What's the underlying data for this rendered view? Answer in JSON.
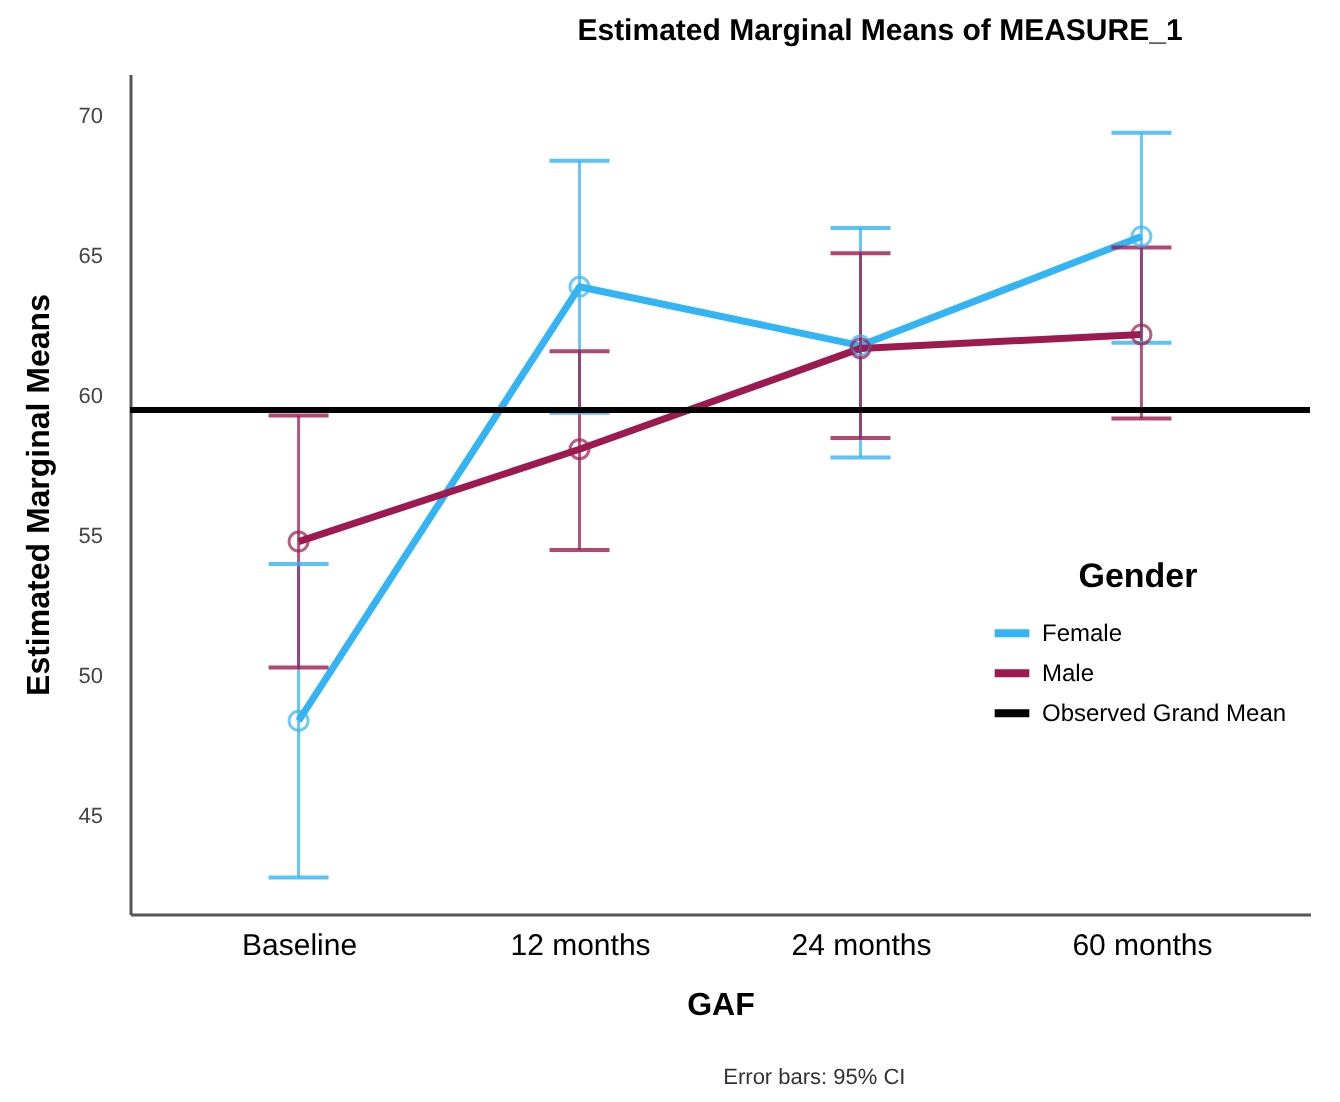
{
  "chart_data": {
    "type": "line",
    "title": "Estimated Marginal Means of MEASURE_1",
    "xlabel": "GAF",
    "ylabel": "Estimated Marginal Means",
    "legend_title": "Gender",
    "categories": [
      "Baseline",
      "12 months",
      "24 months",
      "60 months"
    ],
    "series": [
      {
        "name": "Female",
        "color": "#33b4f4",
        "values": [
          48.4,
          63.9,
          61.8,
          65.7
        ],
        "errors": [
          [
            42.8,
            54.0
          ],
          [
            59.4,
            68.4
          ],
          [
            57.8,
            66.0
          ],
          [
            61.9,
            69.4
          ]
        ]
      },
      {
        "name": "Male",
        "color": "#9c1a50",
        "values": [
          54.8,
          58.1,
          61.7,
          62.2
        ],
        "errors": [
          [
            50.3,
            59.3
          ],
          [
            54.5,
            61.6
          ],
          [
            58.5,
            65.1
          ],
          [
            59.2,
            65.3
          ]
        ]
      }
    ],
    "ref_lines": [
      {
        "axis": "y",
        "value": 59.5,
        "label": "Observed Grand Mean",
        "color": "#000000"
      }
    ],
    "ylim": [
      41.5,
      71.5
    ],
    "yticks": [
      45,
      50,
      55,
      60,
      65,
      70
    ],
    "grid": false,
    "legend": "right",
    "marker": "circle",
    "line_style": "solid",
    "annotations": [
      "Error bars: 95% CI"
    ]
  }
}
